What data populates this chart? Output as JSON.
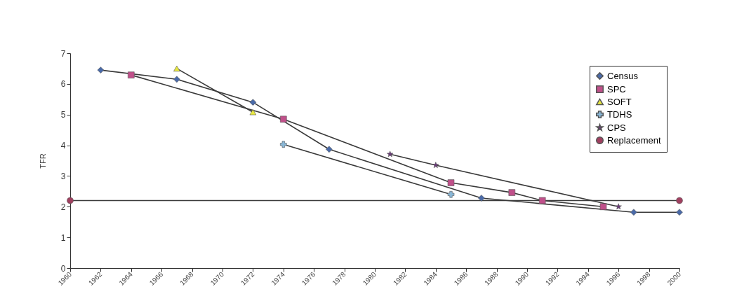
{
  "chart_data": {
    "type": "line",
    "ylabel": "TFR",
    "xlim": [
      1960,
      2000
    ],
    "ylim": [
      0,
      7
    ],
    "xticks": [
      1960,
      1962,
      1964,
      1966,
      1968,
      1970,
      1972,
      1974,
      1976,
      1978,
      1980,
      1982,
      1984,
      1986,
      1988,
      1990,
      1992,
      1994,
      1996,
      1998,
      2000
    ],
    "yticks": [
      0,
      1,
      2,
      3,
      4,
      5,
      6,
      7
    ],
    "grid": false,
    "legend": "top right",
    "series": [
      {
        "name": "Census",
        "color": "#4a6aa8",
        "marker": "diamond",
        "x": [
          1962,
          1967,
          1972,
          1977,
          1987,
          1997,
          2000
        ],
        "values": [
          6.45,
          6.15,
          5.4,
          3.87,
          2.28,
          1.82,
          1.82
        ]
      },
      {
        "name": "SPC",
        "color": "#c0508a",
        "marker": "square",
        "x": [
          1964,
          1974,
          1985,
          1989,
          1991,
          1995
        ],
        "values": [
          6.29,
          4.85,
          2.78,
          2.46,
          2.2,
          2.0
        ]
      },
      {
        "name": "SOFT",
        "color": "#e8e840",
        "marker": "triangle",
        "x": [
          1967,
          1972
        ],
        "values": [
          6.5,
          5.08
        ]
      },
      {
        "name": "TDHS",
        "color": "#8ab8d8",
        "marker": "cross",
        "x": [
          1974,
          1985
        ],
        "values": [
          4.03,
          2.4
        ]
      },
      {
        "name": "CPS",
        "color": "#6a3a78",
        "marker": "star",
        "x": [
          1981,
          1984,
          1996
        ],
        "values": [
          3.71,
          3.35,
          2.0
        ]
      },
      {
        "name": "Replacement",
        "color": "#a04060",
        "marker": "circle",
        "x": [
          1960,
          2000
        ],
        "values": [
          2.2,
          2.2
        ]
      }
    ]
  }
}
